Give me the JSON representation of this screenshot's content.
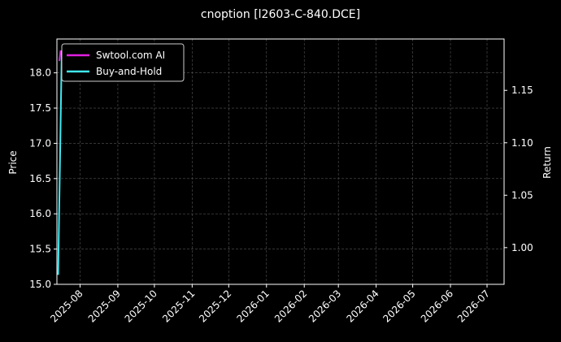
{
  "chart_data": {
    "type": "line",
    "title": "cnoption [l2603-C-840.DCE]",
    "ylabel": "Price",
    "y2label": "Return",
    "xlim": [
      "2025-07-13",
      "2026-07-15"
    ],
    "xticks": [
      "2025-08",
      "2025-09",
      "2025-10",
      "2025-11",
      "2025-12",
      "2026-01",
      "2026-02",
      "2026-03",
      "2026-04",
      "2026-05",
      "2026-06",
      "2026-07"
    ],
    "ylim": [
      15.0,
      18.48
    ],
    "yticks": [
      {
        "value": 15,
        "label": "15.0"
      },
      15.5,
      {
        "value": 16,
        "label": "16.0"
      },
      16.5,
      {
        "value": 17,
        "label": "17.0"
      },
      17.5,
      {
        "value": 18,
        "label": "18.0"
      }
    ],
    "y2lim": [
      0.965,
      1.199
    ],
    "y2ticks": [
      {
        "value": 1,
        "label": "1.00"
      },
      1.05,
      {
        "value": 1.1,
        "label": "1.10"
      },
      1.15
    ],
    "grid": true,
    "legend": "upper left",
    "series": [
      {
        "name": "Swtool.com AI",
        "color": "#e020e0",
        "axis": "y2",
        "x": [
          "2025-07-15",
          "2025-07-16"
        ],
        "values": [
          1.178,
          1.188
        ]
      },
      {
        "name": "Buy-and-Hold",
        "color": "#40e8f0",
        "axis": "y2",
        "x": [
          "2025-07-14",
          "2025-07-17"
        ],
        "values": [
          0.974,
          1.188
        ]
      }
    ]
  }
}
